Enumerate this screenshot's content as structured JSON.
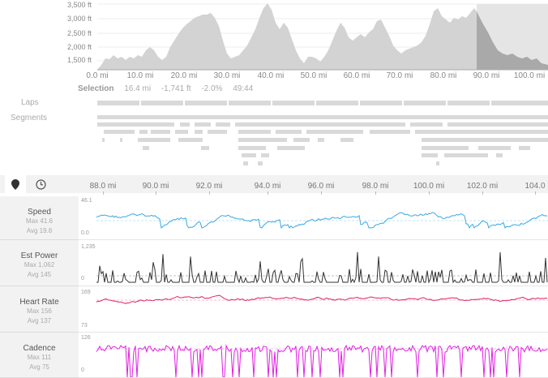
{
  "elevation": {
    "y_labels": [
      "3,500 ft",
      "3,000 ft",
      "2,500 ft",
      "2,000 ft",
      "1,500 ft"
    ],
    "x_labels": [
      "0.0 mi",
      "10.0 mi",
      "20.0 mi",
      "30.0 mi",
      "40.0 mi",
      "50.0 mi",
      "60.0 mi",
      "70.0 mi",
      "80.0 mi",
      "90.0 mi",
      "100.0 mi"
    ],
    "selection": {
      "label": "Selection",
      "distance": "16.4 mi",
      "elevation": "-1,741 ft",
      "grade": "-2.0%",
      "time": "49:44"
    }
  },
  "sections": {
    "laps": "Laps",
    "segments": "Segments"
  },
  "toolbar": {
    "distance_icon": "location-pin-icon",
    "time_icon": "clock-icon"
  },
  "zoom_axis": {
    "labels": [
      "88.0 mi",
      "90.0 mi",
      "92.0 mi",
      "94.0 mi",
      "96.0 mi",
      "98.0 mi",
      "100.0 mi",
      "102.0 mi",
      "104.0"
    ]
  },
  "metrics": [
    {
      "name": "Speed",
      "max": "Max 41.6",
      "avg": "Avg 19.8",
      "top": "46.1",
      "bottom": "0.0",
      "color": "#3aa8e0"
    },
    {
      "name": "Est Power",
      "max": "Max 1,062",
      "avg": "Avg 145",
      "top": "1,235",
      "bottom": "0",
      "color": "#333333"
    },
    {
      "name": "Heart Rate",
      "max": "Max 156",
      "avg": "Avg 137",
      "top": "169",
      "bottom": "73",
      "color": "#e0245e"
    },
    {
      "name": "Cadence",
      "max": "Max 111",
      "avg": "Avg 75",
      "top": "126",
      "bottom": "0",
      "color": "#e020e0"
    }
  ]
}
